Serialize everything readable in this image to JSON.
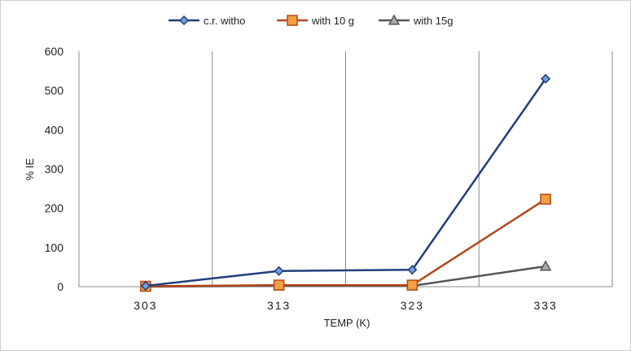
{
  "chart_data": {
    "type": "line",
    "categories": [
      "303",
      "313",
      "323",
      "333"
    ],
    "xlabel": "TEMP (K)",
    "ylabel": "% IE",
    "ylim": [
      0,
      600
    ],
    "yticks": [
      0,
      100,
      200,
      300,
      400,
      500,
      600
    ],
    "grid": "vertical",
    "legend_position": "top",
    "series": [
      {
        "name": "c.r. witho",
        "values": [
          2,
          40,
          43,
          530
        ],
        "color": "#1f3f7a",
        "marker": "diamond"
      },
      {
        "name": "with 10 g",
        "values": [
          1,
          4,
          4,
          223
        ],
        "color": "#b5461a",
        "marker": "square"
      },
      {
        "name": "with 15g",
        "values": [
          0,
          2,
          2,
          52
        ],
        "color": "#555555",
        "marker": "triangle"
      }
    ]
  }
}
